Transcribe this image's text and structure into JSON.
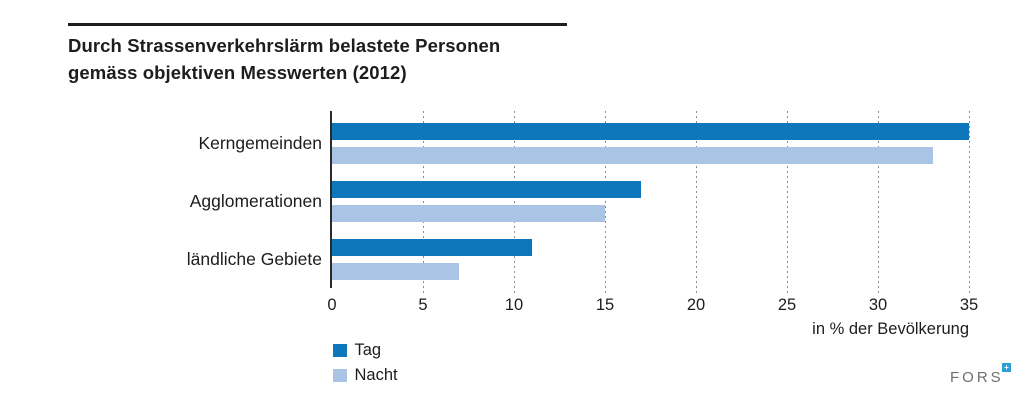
{
  "title": {
    "line1": "Durch Strassenverkehrslärm belastete Personen",
    "line2": "gemäss objektiven Messwerten (2012)"
  },
  "chart_data": {
    "type": "bar",
    "orientation": "horizontal",
    "title": "Durch Strassenverkehrslärm belastete Personen gemäss objektiven Messwerten (2012)",
    "categories": [
      "Kerngemeinden",
      "Agglomerationen",
      "ländliche Gebiete"
    ],
    "series": [
      {
        "name": "Tag",
        "color": "#0e76ba",
        "values": [
          35,
          17,
          11
        ]
      },
      {
        "name": "Nacht",
        "color": "#a9c4e4",
        "values": [
          33,
          15,
          7
        ]
      }
    ],
    "xlabel": "in % der Bevölkerung",
    "xlim": [
      0,
      35
    ],
    "xticks": [
      0,
      5,
      10,
      15,
      20,
      25,
      30,
      35
    ],
    "grid": "vertical-dashed",
    "legend_position": "bottom-left"
  },
  "logo": {
    "text": "FORS",
    "mark_glyph": "+",
    "mark_color": "#2e9ed5",
    "text_color": "#6e6e6e"
  },
  "colors": {
    "bar_day": "#0e76ba",
    "bar_night": "#a9c4e4",
    "text": "#1d1d1b",
    "gridline": "#8c8c8c",
    "axis": "#2a2a28"
  }
}
